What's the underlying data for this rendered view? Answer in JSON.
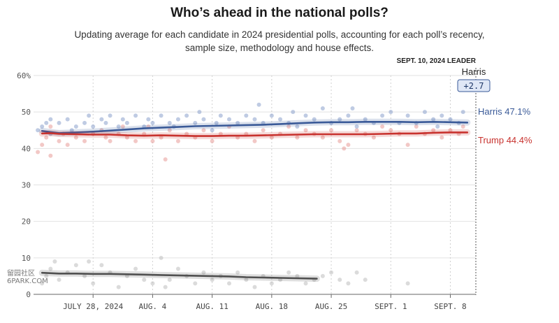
{
  "header": {
    "title": "Who’s ahead in the national polls?",
    "subtitle": "Updating average for each candidate in 2024 presidential polls, accounting for each poll’s recency, sample size, methodology and house effects."
  },
  "leader_box": {
    "label": "SEPT. 10, 2024 LEADER",
    "name": "Harris",
    "margin": "+2.7"
  },
  "watermark": {
    "line1": "留园社区",
    "line2": "6PARK.COM"
  },
  "chart_data": {
    "type": "line",
    "ylim": [
      0,
      60
    ],
    "y_ticks": [
      "0",
      "10",
      "20",
      "30",
      "40",
      "50",
      "60%"
    ],
    "x_range": [
      20,
      72
    ],
    "x_ticks": [
      {
        "x": 27,
        "label": "JULY 28, 2024"
      },
      {
        "x": 34,
        "label": "AUG. 4"
      },
      {
        "x": 41,
        "label": "AUG. 11"
      },
      {
        "x": 48,
        "label": "AUG. 18"
      },
      {
        "x": 55,
        "label": "AUG. 25"
      },
      {
        "x": 62,
        "label": "SEPT. 1"
      },
      {
        "x": 69,
        "label": "SEPT. 8"
      }
    ],
    "grid": true,
    "series": [
      {
        "name": "Harris",
        "end_label": "Harris 47.1%",
        "color": "#3a5a98",
        "dot_color": "#8aa0cc",
        "x": [
          21,
          22,
          23,
          25,
          27,
          29,
          31,
          33,
          35,
          37,
          39,
          41,
          43,
          45,
          47,
          49,
          51,
          53,
          55,
          57,
          59,
          61,
          63,
          65,
          67,
          69,
          71
        ],
        "y": [
          44.8,
          44.5,
          44.2,
          44.4,
          44.6,
          44.9,
          45.2,
          45.5,
          45.7,
          45.9,
          46.1,
          46.2,
          46.3,
          46.4,
          46.5,
          46.7,
          46.9,
          47.1,
          47.2,
          47.2,
          47.3,
          47.3,
          47.3,
          47.2,
          47.3,
          47.2,
          47.1
        ]
      },
      {
        "name": "Trump",
        "end_label": "Trump 44.4%",
        "color": "#c8322e",
        "dot_color": "#e89a98",
        "x": [
          21,
          22,
          23,
          25,
          27,
          29,
          31,
          33,
          35,
          37,
          39,
          41,
          43,
          45,
          47,
          49,
          51,
          53,
          55,
          57,
          59,
          61,
          63,
          65,
          67,
          69,
          71
        ],
        "y": [
          44.1,
          44.2,
          44.0,
          43.9,
          43.8,
          43.8,
          43.6,
          43.5,
          43.6,
          43.5,
          43.4,
          43.4,
          43.5,
          43.5,
          43.6,
          43.7,
          43.8,
          43.9,
          43.9,
          43.9,
          43.9,
          44.0,
          44.1,
          44.1,
          44.3,
          44.4,
          44.4
        ]
      },
      {
        "color": "#505050",
        "dot_color": "#bdbdbd",
        "x": [
          21,
          23,
          25,
          27,
          29,
          31,
          33,
          35,
          37,
          39,
          41,
          43,
          45,
          47,
          49,
          51,
          53.3
        ],
        "y": [
          5.9,
          5.7,
          5.7,
          5.6,
          5.6,
          5.5,
          5.4,
          5.3,
          5.2,
          5.1,
          5.0,
          4.9,
          4.7,
          4.6,
          4.5,
          4.4,
          4.3
        ]
      }
    ],
    "polls": {
      "harris": [
        [
          20.5,
          45
        ],
        [
          21,
          46
        ],
        [
          21.5,
          47
        ],
        [
          22,
          44
        ],
        [
          22,
          48
        ],
        [
          23,
          47
        ],
        [
          24,
          48
        ],
        [
          24.5,
          45
        ],
        [
          25,
          46
        ],
        [
          26,
          47
        ],
        [
          26.5,
          49
        ],
        [
          27,
          46
        ],
        [
          28,
          48
        ],
        [
          28.5,
          47
        ],
        [
          29,
          49
        ],
        [
          30,
          46
        ],
        [
          30.5,
          48
        ],
        [
          31,
          47
        ],
        [
          32,
          49
        ],
        [
          33,
          46
        ],
        [
          33.5,
          48
        ],
        [
          34,
          47
        ],
        [
          35,
          49
        ],
        [
          36,
          47
        ],
        [
          36.5,
          46
        ],
        [
          37,
          48
        ],
        [
          38,
          49
        ],
        [
          39,
          47
        ],
        [
          39.5,
          50
        ],
        [
          40,
          48
        ],
        [
          41,
          45
        ],
        [
          41.5,
          47
        ],
        [
          42,
          49
        ],
        [
          43,
          48
        ],
        [
          44,
          47
        ],
        [
          45,
          49
        ],
        [
          46,
          48
        ],
        [
          46.5,
          52
        ],
        [
          47,
          47
        ],
        [
          48,
          49
        ],
        [
          49,
          48
        ],
        [
          50,
          47
        ],
        [
          50.5,
          50
        ],
        [
          51,
          46
        ],
        [
          52,
          49
        ],
        [
          53,
          48
        ],
        [
          54,
          51
        ],
        [
          55,
          47
        ],
        [
          56,
          48
        ],
        [
          57,
          49
        ],
        [
          57.5,
          51
        ],
        [
          58,
          46
        ],
        [
          59,
          48
        ],
        [
          60,
          47
        ],
        [
          61,
          49
        ],
        [
          62,
          50
        ],
        [
          63,
          47
        ],
        [
          64,
          49
        ],
        [
          65,
          47
        ],
        [
          66,
          50
        ],
        [
          67,
          48
        ],
        [
          67.5,
          46
        ],
        [
          68,
          49
        ],
        [
          69,
          48
        ],
        [
          70,
          47
        ],
        [
          70.5,
          50
        ]
      ],
      "trump": [
        [
          20.5,
          39
        ],
        [
          21,
          41
        ],
        [
          21.5,
          43
        ],
        [
          22,
          38
        ],
        [
          22,
          46
        ],
        [
          23,
          42
        ],
        [
          23.5,
          44
        ],
        [
          24,
          41
        ],
        [
          25,
          43
        ],
        [
          26,
          42
        ],
        [
          27,
          44
        ],
        [
          28,
          45
        ],
        [
          28.5,
          43
        ],
        [
          29,
          42
        ],
        [
          30,
          44
        ],
        [
          30.5,
          46
        ],
        [
          31,
          43
        ],
        [
          32,
          42
        ],
        [
          33,
          44
        ],
        [
          33.5,
          46
        ],
        [
          34,
          42
        ],
        [
          35,
          43
        ],
        [
          35.5,
          37
        ],
        [
          36,
          45
        ],
        [
          37,
          42
        ],
        [
          38,
          44
        ],
        [
          39,
          43
        ],
        [
          40,
          45
        ],
        [
          41,
          42
        ],
        [
          42,
          44
        ],
        [
          43,
          46
        ],
        [
          44,
          43
        ],
        [
          45,
          44
        ],
        [
          46,
          42
        ],
        [
          47,
          45
        ],
        [
          48,
          43
        ],
        [
          49,
          44
        ],
        [
          50,
          46
        ],
        [
          51,
          43
        ],
        [
          52,
          45
        ],
        [
          53,
          44
        ],
        [
          54,
          43
        ],
        [
          55,
          45
        ],
        [
          56,
          42
        ],
        [
          56.5,
          40
        ],
        [
          57,
          41
        ],
        [
          58,
          45
        ],
        [
          59,
          44
        ],
        [
          60,
          43
        ],
        [
          61,
          46
        ],
        [
          62,
          45
        ],
        [
          63,
          44
        ],
        [
          64,
          41
        ],
        [
          65,
          46
        ],
        [
          66,
          44
        ],
        [
          67,
          45
        ],
        [
          68,
          43
        ],
        [
          69,
          45
        ],
        [
          70,
          44
        ],
        [
          70.5,
          46
        ]
      ],
      "other": [
        [
          21,
          3
        ],
        [
          21.5,
          5
        ],
        [
          22,
          7
        ],
        [
          22.5,
          9
        ],
        [
          23,
          4
        ],
        [
          24,
          6
        ],
        [
          25,
          8
        ],
        [
          26,
          5
        ],
        [
          26.5,
          9
        ],
        [
          27,
          3
        ],
        [
          28,
          8
        ],
        [
          29,
          6
        ],
        [
          30,
          2
        ],
        [
          31,
          5
        ],
        [
          32,
          7
        ],
        [
          33,
          4
        ],
        [
          34,
          3
        ],
        [
          35,
          10
        ],
        [
          35.5,
          2
        ],
        [
          36,
          4
        ],
        [
          37,
          7
        ],
        [
          38,
          5
        ],
        [
          39,
          3
        ],
        [
          40,
          6
        ],
        [
          41,
          4
        ],
        [
          42,
          5
        ],
        [
          43,
          3
        ],
        [
          44,
          6
        ],
        [
          45,
          4
        ],
        [
          46,
          2
        ],
        [
          47,
          5
        ],
        [
          48,
          3
        ],
        [
          49,
          4
        ],
        [
          50,
          6
        ],
        [
          51,
          5
        ],
        [
          52,
          3
        ],
        [
          53,
          4
        ],
        [
          54,
          5
        ],
        [
          55,
          6
        ],
        [
          56,
          4
        ],
        [
          57,
          3
        ],
        [
          58,
          6
        ],
        [
          59,
          4
        ],
        [
          64,
          3
        ]
      ]
    }
  }
}
